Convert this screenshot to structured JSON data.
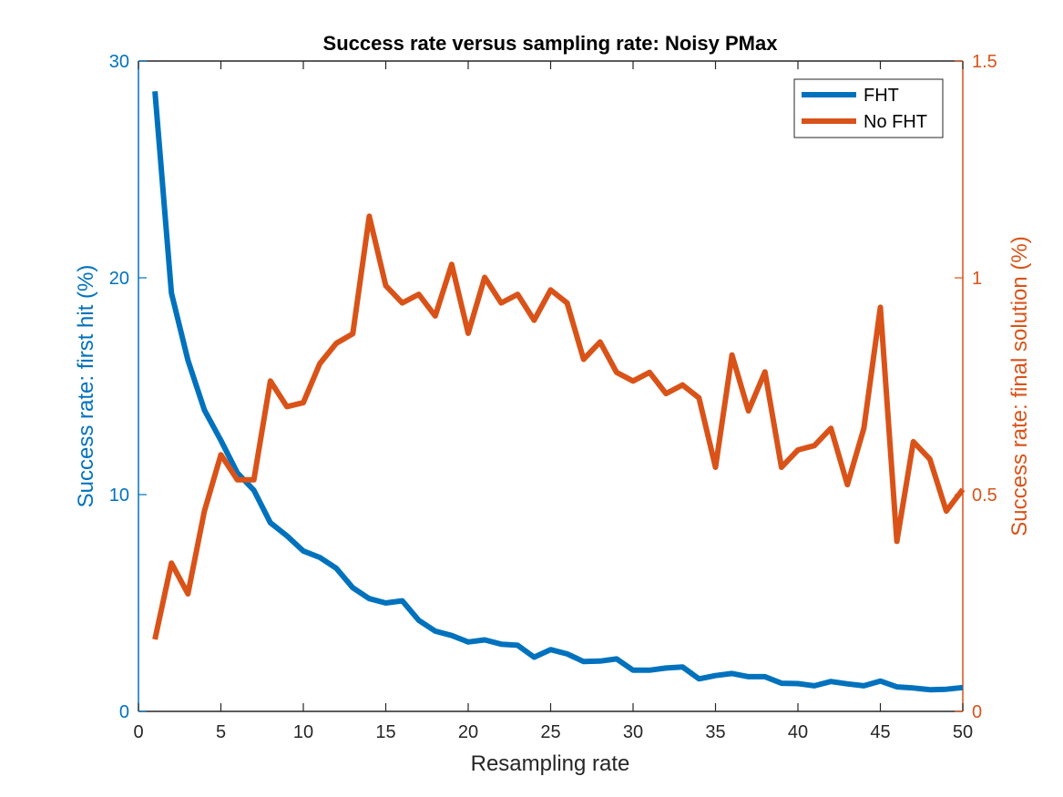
{
  "chart_data": {
    "type": "line",
    "title": "Success rate versus sampling rate: Noisy PMax",
    "xlabel": "Resampling rate",
    "ylabel_left": "Success rate: first hit (%)",
    "ylabel_right": "Success rate: final solution (%)",
    "xlim": [
      0,
      50
    ],
    "ylim_left": [
      0,
      30
    ],
    "ylim_right": [
      0,
      1.5
    ],
    "x_ticks": [
      "0",
      "5",
      "10",
      "15",
      "20",
      "25",
      "30",
      "35",
      "40",
      "45",
      "50"
    ],
    "y_left_ticks": [
      "0",
      "10",
      "20",
      "30"
    ],
    "y_right_ticks": [
      "0",
      "0.5",
      "1",
      "1.5"
    ],
    "grid": false,
    "legend_position": "top-right",
    "colors": {
      "left_axis": "#0072BD",
      "right_axis": "#D95319",
      "fht": "#0072BD",
      "nofht": "#D95319"
    },
    "x": [
      1,
      2,
      3,
      4,
      5,
      6,
      7,
      8,
      9,
      10,
      11,
      12,
      13,
      14,
      15,
      16,
      17,
      18,
      19,
      20,
      21,
      22,
      23,
      24,
      25,
      26,
      27,
      28,
      29,
      30,
      31,
      32,
      33,
      34,
      35,
      36,
      37,
      38,
      39,
      40,
      41,
      42,
      43,
      44,
      45,
      46,
      47,
      48,
      49,
      50
    ],
    "series": [
      {
        "name": "FHT",
        "axis": "left",
        "values": [
          28.6,
          19.3,
          16.2,
          13.9,
          12.5,
          11.0,
          10.2,
          8.7,
          8.1,
          7.4,
          7.1,
          6.6,
          5.7,
          5.2,
          5.0,
          5.1,
          4.2,
          3.7,
          3.5,
          3.2,
          3.3,
          3.1,
          3.05,
          2.5,
          2.85,
          2.65,
          2.3,
          2.32,
          2.42,
          1.9,
          1.9,
          2.0,
          2.05,
          1.5,
          1.65,
          1.75,
          1.6,
          1.6,
          1.3,
          1.28,
          1.18,
          1.38,
          1.27,
          1.18,
          1.4,
          1.13,
          1.08,
          1.0,
          1.02,
          1.1
        ]
      },
      {
        "name": "No FHT",
        "axis": "right",
        "values": [
          0.166,
          0.342,
          0.271,
          0.462,
          0.592,
          0.534,
          0.534,
          0.762,
          0.703,
          0.712,
          0.802,
          0.849,
          0.871,
          1.142,
          0.982,
          0.942,
          0.962,
          0.912,
          1.031,
          0.872,
          1.001,
          0.942,
          0.962,
          0.902,
          0.972,
          0.942,
          0.812,
          0.852,
          0.782,
          0.762,
          0.782,
          0.733,
          0.753,
          0.723,
          0.563,
          0.822,
          0.693,
          0.783,
          0.563,
          0.603,
          0.613,
          0.653,
          0.523,
          0.653,
          0.932,
          0.392,
          0.622,
          0.582,
          0.462,
          0.512
        ]
      }
    ]
  }
}
